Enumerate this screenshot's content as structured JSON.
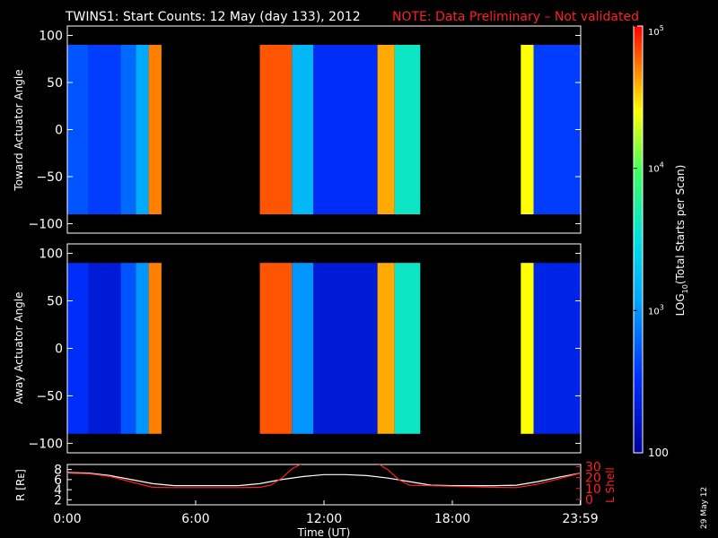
{
  "figure": {
    "title": "TWINS1: Start Counts: 12 May (day 133), 2012",
    "note": "NOTE: Data Preliminary – Not validated",
    "date_stamp": "29 May 12",
    "colors": {
      "background": "#000000",
      "note": "#ff2020",
      "frame": "#ffffff"
    }
  },
  "chart_data": [
    {
      "type": "heatmap",
      "name": "toward",
      "ylabel": "Toward Actuator Angle",
      "ylim": [
        -110,
        110
      ],
      "yticks": [
        "100",
        "50",
        "0",
        "−50",
        "−100"
      ],
      "ytick_values": [
        100,
        50,
        0,
        -50,
        -100
      ],
      "xlim_hours": [
        0,
        24
      ],
      "angle_range": [
        -90,
        90
      ],
      "data_intervals_hours": [
        [
          0.0,
          4.4
        ],
        [
          9.0,
          16.5
        ],
        [
          21.2,
          24.0
        ]
      ],
      "column_log10_counts": [
        {
          "x": [
            0.0,
            1.0
          ],
          "value": 2.7
        },
        {
          "x": [
            1.0,
            2.5
          ],
          "value": 2.6
        },
        {
          "x": [
            2.5,
            3.2
          ],
          "value": 2.8
        },
        {
          "x": [
            3.2,
            3.8
          ],
          "value": 3.1
        },
        {
          "x": [
            3.8,
            4.4
          ],
          "value": 4.7
        },
        {
          "x": [
            9.0,
            10.5
          ],
          "value": 4.8
        },
        {
          "x": [
            10.5,
            11.5
          ],
          "value": 3.2
        },
        {
          "x": [
            11.5,
            14.5
          ],
          "value": 2.5
        },
        {
          "x": [
            14.5,
            15.3
          ],
          "value": 4.6
        },
        {
          "x": [
            15.3,
            16.5
          ],
          "value": 3.6
        },
        {
          "x": [
            21.2,
            21.8
          ],
          "value": 4.4
        },
        {
          "x": [
            21.8,
            24.0
          ],
          "value": 2.6
        }
      ]
    },
    {
      "type": "heatmap",
      "name": "away",
      "ylabel": "Away Actuator Angle",
      "ylim": [
        -110,
        110
      ],
      "yticks": [
        "100",
        "50",
        "0",
        "−50",
        "−100"
      ],
      "ytick_values": [
        100,
        50,
        0,
        -50,
        -100
      ],
      "xlim_hours": [
        0,
        24
      ],
      "angle_range": [
        -90,
        90
      ],
      "data_intervals_hours": [
        [
          0.0,
          4.4
        ],
        [
          9.0,
          16.5
        ],
        [
          21.2,
          24.0
        ]
      ],
      "column_log10_counts": [
        {
          "x": [
            0.0,
            1.0
          ],
          "value": 2.5
        },
        {
          "x": [
            1.0,
            2.5
          ],
          "value": 2.3
        },
        {
          "x": [
            2.5,
            3.2
          ],
          "value": 2.7
        },
        {
          "x": [
            3.2,
            3.8
          ],
          "value": 3.0
        },
        {
          "x": [
            3.8,
            4.4
          ],
          "value": 4.7
        },
        {
          "x": [
            9.0,
            10.5
          ],
          "value": 4.8
        },
        {
          "x": [
            10.5,
            11.5
          ],
          "value": 3.0
        },
        {
          "x": [
            11.5,
            14.5
          ],
          "value": 2.3
        },
        {
          "x": [
            14.5,
            15.3
          ],
          "value": 4.6
        },
        {
          "x": [
            15.3,
            16.5
          ],
          "value": 3.6
        },
        {
          "x": [
            21.2,
            21.8
          ],
          "value": 4.4
        },
        {
          "x": [
            21.8,
            24.0
          ],
          "value": 2.4
        }
      ]
    },
    {
      "type": "line",
      "name": "orbit",
      "ylabel": "R [Rᴇ]",
      "ylabel_right": "L Shell",
      "ylim_left": [
        1,
        9
      ],
      "yticks_left": [
        "8",
        "6",
        "4",
        "2"
      ],
      "ytick_values_left": [
        8,
        6,
        4,
        2
      ],
      "ylim_right": [
        -5,
        32
      ],
      "yticks_right": [
        "30",
        "20",
        "10",
        "0"
      ],
      "ytick_values_right": [
        30,
        20,
        10,
        0
      ],
      "xticks": [
        "0:00",
        "6:00",
        "12:00",
        "18:00",
        "23:59"
      ],
      "xtick_hours": [
        0,
        6,
        12,
        18,
        23.98
      ],
      "xlabel": "Time (UT)",
      "series": [
        {
          "axis": "left",
          "color": "#ffffff",
          "x": [
            0,
            1,
            2,
            3,
            4,
            5,
            6,
            7,
            8,
            9,
            10,
            11,
            12,
            13,
            14,
            15,
            16,
            17,
            18,
            19,
            20,
            21,
            22,
            23,
            24
          ],
          "y": [
            7.4,
            7.3,
            6.8,
            6.0,
            5.2,
            4.8,
            4.8,
            4.8,
            4.8,
            5.2,
            6.0,
            6.6,
            7.0,
            7.0,
            6.8,
            6.3,
            5.6,
            4.9,
            4.8,
            4.8,
            4.8,
            4.9,
            5.6,
            6.5,
            7.3
          ]
        },
        {
          "axis": "right",
          "color": "#ff2020",
          "x": [
            0,
            1,
            2,
            3,
            4,
            5,
            6,
            7,
            8,
            9,
            9.5,
            10,
            10.5,
            11,
            14.5,
            15,
            15.5,
            16,
            17,
            18,
            19,
            20,
            21,
            22,
            23,
            24
          ],
          "y": [
            24,
            23.5,
            21,
            16,
            11,
            10.8,
            10.8,
            10.8,
            10.8,
            11,
            13,
            19,
            28,
            33,
            33,
            27,
            18,
            13,
            12.5,
            12,
            11.5,
            11,
            10.8,
            14,
            19,
            24
          ]
        }
      ]
    }
  ],
  "colorbar": {
    "label_prefix": "LOG",
    "label_sub": "10",
    "label_suffix": "(Total Starts per Scan)",
    "range_log10": [
      2,
      5
    ],
    "ticks": [
      {
        "base": "10",
        "exp": "5",
        "value": 5
      },
      {
        "base": "10",
        "exp": "4",
        "value": 4
      },
      {
        "base": "10",
        "exp": "3",
        "value": 3
      }
    ],
    "bottom_label": "100",
    "bottom_value": 2
  }
}
